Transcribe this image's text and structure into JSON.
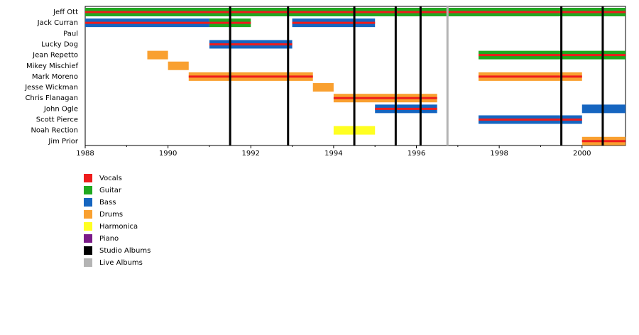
{
  "chart_data": {
    "type": "timeline",
    "xlim": [
      1988,
      2001.05
    ],
    "xticks": [
      1988,
      1990,
      1992,
      1994,
      1996,
      1998,
      2000
    ],
    "xminorticks": [
      1989,
      1991,
      1993,
      1995,
      1997,
      1999
    ],
    "legend": [
      {
        "name": "Vocals",
        "color": "#ee1c1c"
      },
      {
        "name": "Guitar",
        "color": "#20a820"
      },
      {
        "name": "Bass",
        "color": "#1565c0"
      },
      {
        "name": "Drums",
        "color": "#f9a030"
      },
      {
        "name": "Harmonica",
        "color": "#ffff22"
      },
      {
        "name": "Piano",
        "color": "#7a1a88"
      },
      {
        "name": "Studio Albums",
        "color": "#000000"
      },
      {
        "name": "Live Albums",
        "color": "#b4b4b4"
      }
    ],
    "studio_albums": [
      1991.5,
      1992.9,
      1994.5,
      1995.5,
      1996.1,
      1999.5,
      2000.5
    ],
    "live_albums": [
      1996.75
    ],
    "members": [
      {
        "name": "Jeff Ott",
        "periods": [
          {
            "start": 1988,
            "end": 2001.05,
            "role": "Guitar",
            "stripe": "Vocals"
          }
        ]
      },
      {
        "name": "Jack Curran",
        "periods": [
          {
            "start": 1988,
            "end": 1991,
            "role": "Bass",
            "stripe": "Vocals"
          },
          {
            "start": 1991,
            "end": 1992,
            "role": "Guitar",
            "stripe": "Vocals"
          },
          {
            "start": 1993,
            "end": 1995,
            "role": "Bass",
            "stripe": "Vocals"
          }
        ]
      },
      {
        "name": "Paul",
        "periods": []
      },
      {
        "name": "Lucky Dog",
        "periods": [
          {
            "start": 1991,
            "end": 1993,
            "role": "Bass",
            "stripe": "Vocals"
          }
        ]
      },
      {
        "name": "Jean Repetto",
        "periods": [
          {
            "start": 1989.5,
            "end": 1990,
            "role": "Drums"
          },
          {
            "start": 1997.5,
            "end": 2001.05,
            "role": "Guitar",
            "stripe": "Vocals"
          }
        ]
      },
      {
        "name": "Mikey Mischief",
        "periods": [
          {
            "start": 1990,
            "end": 1990.5,
            "role": "Drums"
          }
        ]
      },
      {
        "name": "Mark Moreno",
        "periods": [
          {
            "start": 1990.5,
            "end": 1993.5,
            "role": "Drums",
            "stripe": "Vocals"
          },
          {
            "start": 1997.5,
            "end": 2000,
            "role": "Drums",
            "stripe": "Vocals"
          }
        ]
      },
      {
        "name": "Jesse Wickman",
        "periods": [
          {
            "start": 1993.5,
            "end": 1994,
            "role": "Drums"
          }
        ]
      },
      {
        "name": "Chris Flanagan",
        "periods": [
          {
            "start": 1994,
            "end": 1996.5,
            "role": "Drums",
            "stripe": "Vocals"
          }
        ]
      },
      {
        "name": "John Ogle",
        "periods": [
          {
            "start": 1995,
            "end": 1996.5,
            "role": "Bass",
            "stripe": "Vocals"
          },
          {
            "start": 2000,
            "end": 2001.05,
            "role": "Bass"
          }
        ]
      },
      {
        "name": "Scott Pierce",
        "periods": [
          {
            "start": 1997.5,
            "end": 2000,
            "role": "Bass",
            "stripe": "Vocals"
          }
        ]
      },
      {
        "name": "Noah Rection",
        "periods": [
          {
            "start": 1994,
            "end": 1995,
            "role": "Harmonica"
          }
        ]
      },
      {
        "name": "Jim Prior",
        "periods": [
          {
            "start": 2000,
            "end": 2001.05,
            "role": "Drums",
            "stripe": "Vocals"
          }
        ]
      }
    ]
  }
}
